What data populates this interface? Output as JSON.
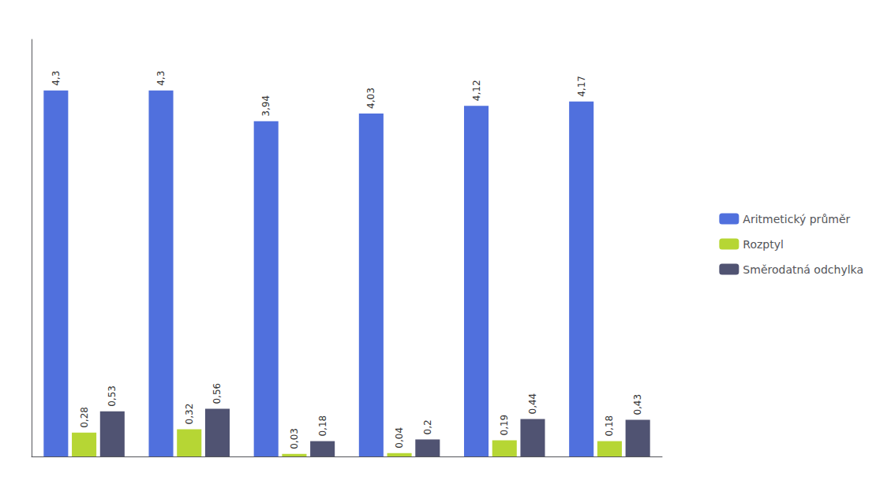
{
  "chart_data": {
    "type": "bar",
    "categories": [
      null,
      null,
      null,
      null,
      null,
      null
    ],
    "series": [
      {
        "name": "Aritmetický průměr",
        "values": [
          4.3,
          4.3,
          3.94,
          4.03,
          4.12,
          4.17
        ],
        "value_labels": [
          "4,3",
          "4,3",
          "3,94",
          "4,03",
          "4,12",
          "4,17"
        ]
      },
      {
        "name": "Rozptyl",
        "values": [
          0.28,
          0.32,
          0.03,
          0.04,
          0.19,
          0.18
        ],
        "value_labels": [
          "0,28",
          "0,32",
          "0,03",
          "0,04",
          "0,19",
          "0,18"
        ]
      },
      {
        "name": "Směrodatná odchylka",
        "values": [
          0.53,
          0.56,
          0.18,
          0.2,
          0.44,
          0.43
        ],
        "value_labels": [
          "0,53",
          "0,56",
          "0,18",
          "0,2",
          "0,44",
          "0,43"
        ]
      }
    ],
    "ylim": [
      0,
      4.9
    ],
    "yticks": [],
    "grid": false,
    "legend": "right",
    "data_labels": true,
    "tick_labels": false
  }
}
